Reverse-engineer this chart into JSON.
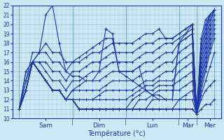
{
  "xlabel": "Température (°c)",
  "bg_color": "#cce8f4",
  "line_color": "#1a35a8",
  "ymin": 10,
  "ymax": 22,
  "xmin": -3,
  "xmax": 91,
  "xtick_day_sep": [
    0,
    24,
    48,
    72,
    80,
    88
  ],
  "xtick_positions": [
    12,
    36,
    60,
    76,
    86
  ],
  "xtick_labels": [
    "Sam",
    "Dim",
    "Lun",
    "Mar",
    "Mer"
  ],
  "lines": [
    {
      "x": [
        0,
        3,
        6,
        9,
        12,
        15,
        18,
        21,
        24,
        27,
        30,
        33,
        36,
        39,
        42,
        45,
        48,
        51,
        54,
        57,
        60,
        63,
        66,
        69,
        72,
        75,
        78,
        80,
        82,
        84,
        86,
        88
      ],
      "y": [
        11,
        13,
        16,
        15,
        14,
        13,
        13,
        12,
        12,
        11,
        11,
        11,
        11,
        11,
        11,
        11,
        11,
        11,
        11,
        11,
        11,
        11,
        11,
        11,
        11,
        11,
        11,
        10.5,
        11,
        11.5,
        11.5,
        12
      ]
    },
    {
      "x": [
        0,
        3,
        6,
        9,
        12,
        15,
        18,
        21,
        24,
        27,
        30,
        33,
        36,
        39,
        42,
        45,
        48,
        51,
        54,
        57,
        60,
        63,
        66,
        69,
        72,
        75,
        78,
        80,
        82,
        84,
        86,
        88
      ],
      "y": [
        11,
        13,
        16,
        15,
        14,
        13,
        13,
        12,
        12,
        11,
        11,
        11,
        11,
        11,
        11,
        11,
        11,
        11,
        11,
        11,
        11,
        11,
        11,
        11,
        11,
        11,
        11,
        10.5,
        12,
        13,
        13.5,
        14
      ]
    },
    {
      "x": [
        0,
        3,
        6,
        9,
        12,
        15,
        18,
        21,
        24,
        27,
        30,
        33,
        36,
        39,
        42,
        45,
        48,
        51,
        54,
        57,
        60,
        63,
        66,
        69,
        72,
        75,
        78,
        80,
        82,
        84,
        86,
        88
      ],
      "y": [
        11,
        13,
        16,
        15,
        14,
        13,
        13,
        12,
        12,
        11,
        11,
        11,
        11,
        11,
        11,
        11,
        11,
        11,
        11,
        11,
        11,
        11,
        11,
        11,
        12,
        12,
        12,
        10.5,
        12.5,
        14,
        15.5,
        17
      ]
    },
    {
      "x": [
        0,
        3,
        6,
        9,
        12,
        15,
        18,
        21,
        24,
        27,
        30,
        33,
        36,
        39,
        42,
        45,
        48,
        51,
        54,
        57,
        60,
        63,
        66,
        69,
        72,
        75,
        78,
        80,
        82,
        84,
        86,
        88
      ],
      "y": [
        11,
        13,
        16,
        15,
        14,
        13,
        13,
        12,
        12,
        11,
        11,
        11,
        11,
        11,
        11,
        11,
        11,
        11,
        11,
        11,
        12,
        12,
        12,
        12,
        12,
        12.5,
        13,
        10.5,
        13,
        15,
        17,
        18.5
      ]
    },
    {
      "x": [
        0,
        3,
        6,
        9,
        12,
        15,
        18,
        21,
        24,
        27,
        30,
        33,
        36,
        39,
        42,
        45,
        48,
        51,
        54,
        57,
        60,
        63,
        66,
        69,
        72,
        75,
        78,
        80,
        82,
        84,
        86,
        88
      ],
      "y": [
        11,
        13,
        16,
        15,
        14,
        13,
        13,
        12,
        12,
        11,
        11,
        11,
        11,
        11,
        11,
        11,
        11,
        11,
        12,
        12,
        12.5,
        13,
        13,
        13,
        13,
        13.5,
        14,
        10.5,
        13.5,
        15.5,
        17.5,
        19
      ]
    },
    {
      "x": [
        0,
        3,
        6,
        9,
        12,
        15,
        18,
        21,
        24,
        27,
        30,
        33,
        36,
        39,
        42,
        45,
        48,
        51,
        54,
        57,
        60,
        63,
        66,
        69,
        72,
        75,
        78,
        80,
        82,
        84,
        86,
        88
      ],
      "y": [
        11,
        13,
        16,
        15,
        14,
        13,
        13,
        12,
        12,
        11,
        11,
        11,
        11,
        11,
        11,
        11,
        11,
        12,
        12.5,
        13,
        13,
        13.5,
        13.5,
        13.5,
        14,
        14.5,
        15,
        10.5,
        14,
        16,
        18,
        19.5
      ]
    },
    {
      "x": [
        0,
        3,
        6,
        9,
        12,
        15,
        18,
        21,
        24,
        27,
        30,
        33,
        36,
        39,
        42,
        45,
        48,
        51,
        54,
        57,
        60,
        63,
        66,
        69,
        72,
        75,
        78,
        80,
        82,
        84,
        86,
        88
      ],
      "y": [
        11,
        13,
        16,
        15,
        14,
        13,
        13,
        12,
        12,
        12,
        12,
        12,
        12,
        12,
        12,
        12,
        12,
        12.5,
        13,
        13.5,
        13.5,
        14,
        14,
        14,
        15,
        15.5,
        16,
        10.5,
        14.5,
        16.5,
        18.5,
        20
      ]
    },
    {
      "x": [
        0,
        3,
        6,
        9,
        12,
        15,
        18,
        21,
        24,
        27,
        30,
        33,
        36,
        39,
        42,
        45,
        48,
        51,
        54,
        57,
        60,
        63,
        66,
        69,
        72,
        75,
        78,
        80,
        82,
        84,
        86,
        88
      ],
      "y": [
        11,
        13,
        16,
        15,
        14,
        13,
        13,
        12,
        12,
        12,
        12,
        12,
        12.5,
        13,
        13,
        13,
        13,
        13,
        13.5,
        14,
        14,
        14.5,
        15,
        15,
        16,
        16.5,
        17,
        10.5,
        15,
        17,
        19,
        20.5
      ]
    },
    {
      "x": [
        0,
        3,
        6,
        9,
        12,
        15,
        18,
        21,
        24,
        27,
        30,
        33,
        36,
        39,
        42,
        45,
        48,
        51,
        54,
        57,
        60,
        63,
        66,
        69,
        72,
        75,
        78,
        80,
        82,
        84,
        86,
        88
      ],
      "y": [
        11,
        13,
        16,
        15,
        14,
        13,
        13,
        12,
        13,
        13,
        13,
        13,
        13,
        13.5,
        14,
        14,
        14,
        14,
        14.5,
        15,
        15,
        15.5,
        16,
        16,
        17,
        17.5,
        18,
        10.5,
        15.5,
        17.5,
        19.5,
        21
      ]
    },
    {
      "x": [
        0,
        3,
        6,
        9,
        12,
        15,
        18,
        21,
        24,
        27,
        30,
        33,
        36,
        39,
        42,
        45,
        48,
        51,
        54,
        57,
        60,
        63,
        66,
        69,
        72,
        75,
        78,
        80,
        82,
        84,
        86,
        88
      ],
      "y": [
        11,
        13,
        16,
        15,
        14,
        13,
        13,
        12,
        13,
        13.5,
        14,
        14,
        14,
        14.5,
        15,
        15,
        15,
        15,
        15.5,
        16,
        16,
        16.5,
        17,
        17,
        18,
        18.5,
        19,
        10.5,
        16,
        18,
        20,
        21.5
      ]
    },
    {
      "x": [
        0,
        3,
        6,
        9,
        12,
        15,
        18,
        21,
        24,
        27,
        30,
        33,
        36,
        39,
        42,
        45,
        48,
        51,
        54,
        57,
        60,
        63,
        66,
        69,
        72,
        75,
        78,
        80,
        82,
        84,
        86,
        88
      ],
      "y": [
        11,
        13,
        16,
        16,
        15,
        14,
        14,
        13,
        14,
        14,
        14.5,
        15,
        15,
        15.5,
        16,
        16,
        16,
        16,
        16.5,
        17,
        17,
        17.5,
        18,
        18,
        18.5,
        19,
        19.5,
        10.5,
        16.5,
        18.5,
        20.5,
        21.5
      ]
    },
    {
      "x": [
        0,
        3,
        6,
        9,
        12,
        15,
        18,
        21,
        24,
        27,
        30,
        33,
        36,
        39,
        42,
        45,
        48,
        51,
        54,
        57,
        60,
        63,
        66,
        69,
        72,
        75,
        78,
        80,
        82,
        84,
        86,
        88
      ],
      "y": [
        11,
        14,
        16,
        16,
        16,
        15,
        15,
        14,
        15,
        15,
        15.5,
        16,
        16,
        16.5,
        17,
        17,
        17,
        17,
        17.5,
        18,
        18,
        18.5,
        18.5,
        18.5,
        19,
        19.5,
        20,
        10.5,
        17,
        19,
        21,
        21.5
      ]
    },
    {
      "x": [
        0,
        3,
        6,
        9,
        12,
        15,
        18,
        21,
        24,
        27,
        30,
        33,
        36,
        39,
        42,
        45,
        48,
        51,
        54,
        57,
        60,
        63,
        66,
        69,
        72,
        75,
        78,
        80,
        82,
        84,
        86,
        88
      ],
      "y": [
        11,
        14,
        17,
        17,
        17,
        16,
        16,
        15,
        16,
        16,
        16.5,
        17,
        17,
        17.5,
        18,
        18,
        18,
        18,
        18.5,
        19,
        19,
        19.5,
        18.5,
        18.5,
        19,
        19.5,
        20,
        10.5,
        17.5,
        19.5,
        21,
        21.5
      ]
    },
    {
      "x": [
        0,
        3,
        6,
        9,
        12,
        15,
        18,
        21,
        24,
        27,
        30,
        33,
        36,
        39,
        42,
        45,
        48,
        51,
        54,
        57,
        60,
        63,
        66,
        69,
        72,
        75,
        78,
        80,
        82,
        84,
        86,
        88
      ],
      "y": [
        11,
        15,
        16,
        17,
        18,
        17,
        17,
        16,
        16,
        16.5,
        17,
        17.5,
        18,
        18.5,
        18.5,
        15,
        15,
        15,
        15.5,
        13,
        12.5,
        12.5,
        12,
        12,
        18,
        19,
        20,
        10.5,
        18,
        20,
        21,
        21.5
      ]
    },
    {
      "x": [
        0,
        3,
        6,
        9,
        12,
        15,
        18,
        21,
        24,
        27,
        30,
        33,
        36,
        39,
        42,
        45,
        48,
        51,
        54,
        57,
        60,
        63,
        66,
        69,
        72,
        75,
        78,
        80,
        82,
        84,
        86,
        88
      ],
      "y": [
        11,
        15,
        16,
        17,
        21,
        22,
        18,
        15,
        14.5,
        14.5,
        14,
        14,
        15,
        19.5,
        19,
        15,
        14.5,
        14,
        13.5,
        13,
        12.5,
        12,
        12,
        12,
        18,
        18.5,
        19,
        10.5,
        18.5,
        20.5,
        21,
        21.5
      ]
    }
  ]
}
